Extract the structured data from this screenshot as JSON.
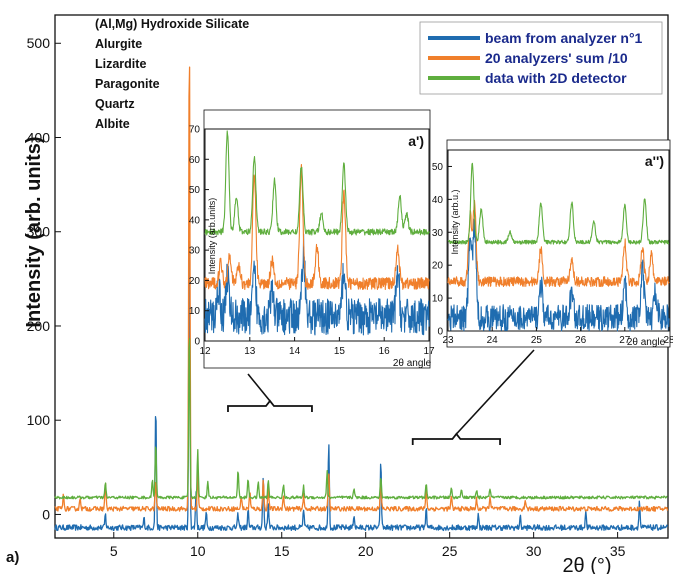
{
  "chart_data": [
    {
      "id": "main",
      "type": "line",
      "panel_label": "a)",
      "xlabel": "2θ (°)",
      "ylabel": "Intensity (arb. units)",
      "xlim": [
        1.5,
        38
      ],
      "ylim": [
        -25,
        530
      ],
      "xticks": [
        5,
        10,
        15,
        20,
        25,
        30,
        35
      ],
      "yticks": [
        0,
        100,
        200,
        300,
        400,
        500
      ],
      "minerals": [
        "(Al,Mg) Hydroxide Silicate",
        "Alurgite",
        "Lizardite",
        "Paragonite",
        "Quartz",
        "Albite"
      ],
      "legend": {
        "position": "top-right"
      },
      "series": [
        {
          "name": "beam from analyzer n°1",
          "color": "#1f6cb0",
          "baseline": -14,
          "noise": 3,
          "peaks": [
            [
              4.5,
              14
            ],
            [
              6.8,
              10
            ],
            [
              7.5,
              130
            ],
            [
              9.5,
              330
            ],
            [
              9.9,
              40
            ],
            [
              10.5,
              16
            ],
            [
              12.4,
              14
            ],
            [
              13.0,
              18
            ],
            [
              13.9,
              55
            ],
            [
              14.2,
              25
            ],
            [
              16.3,
              20
            ],
            [
              17.8,
              92
            ],
            [
              19.3,
              14
            ],
            [
              20.9,
              72
            ],
            [
              23.6,
              20
            ],
            [
              26.7,
              14
            ],
            [
              29.2,
              12
            ],
            [
              33.1,
              16
            ],
            [
              36.3,
              28
            ]
          ]
        },
        {
          "name": "20 analyzers' sum /10",
          "color": "#f07f2b",
          "baseline": 6,
          "noise": 2.5,
          "peaks": [
            [
              2.0,
              14
            ],
            [
              3.0,
              12
            ],
            [
              4.5,
              28
            ],
            [
              7.5,
              30
            ],
            [
              9.5,
              512
            ],
            [
              10.0,
              38
            ],
            [
              12.6,
              14
            ],
            [
              13.1,
              18
            ],
            [
              13.9,
              30
            ],
            [
              14.2,
              22
            ],
            [
              15.1,
              16
            ],
            [
              16.3,
              14
            ],
            [
              17.8,
              40
            ],
            [
              20.9,
              30
            ],
            [
              23.6,
              22
            ],
            [
              25.1,
              12
            ],
            [
              26.6,
              10
            ],
            [
              27.4,
              14
            ],
            [
              29.5,
              10
            ]
          ]
        },
        {
          "name": "data with 2D detector",
          "color": "#5fae3e",
          "baseline": 18,
          "noise": 1.5,
          "peaks": [
            [
              4.5,
              16
            ],
            [
              7.3,
              20
            ],
            [
              7.5,
              60
            ],
            [
              9.5,
              185
            ],
            [
              10.0,
              50
            ],
            [
              10.6,
              18
            ],
            [
              12.4,
              30
            ],
            [
              13.0,
              20
            ],
            [
              13.6,
              16
            ],
            [
              14.2,
              18
            ],
            [
              15.1,
              14
            ],
            [
              16.3,
              12
            ],
            [
              17.7,
              28
            ],
            [
              19.3,
              10
            ],
            [
              20.9,
              22
            ],
            [
              23.6,
              14
            ],
            [
              25.1,
              10
            ],
            [
              25.7,
              10
            ],
            [
              26.6,
              8
            ],
            [
              27.4,
              10
            ]
          ]
        }
      ]
    },
    {
      "id": "inset1",
      "type": "line",
      "panel_label": "a')",
      "xlabel": "2θ angle",
      "ylabel": "Intensity (arb.units)",
      "xlim": [
        12,
        17
      ],
      "ylim": [
        0,
        70
      ],
      "xticks": [
        12,
        13,
        14,
        15,
        16,
        17
      ],
      "yticks": [
        0,
        10,
        20,
        30,
        40,
        50,
        60,
        70
      ],
      "bracket_range": [
        11.8,
        16.8
      ],
      "series": [
        {
          "name": "beam from analyzer n°1",
          "color": "#1f6cb0",
          "baseline": 8,
          "noise": 6,
          "peaks": [
            [
              12.3,
              10
            ],
            [
              12.5,
              14
            ],
            [
              13.1,
              14
            ],
            [
              13.5,
              8
            ],
            [
              14.2,
              22
            ],
            [
              15.1,
              16
            ],
            [
              16.3,
              14
            ]
          ]
        },
        {
          "name": "20 analyzers' sum /10",
          "color": "#f07f2b",
          "baseline": 19,
          "noise": 2,
          "peaks": [
            [
              12.35,
              7
            ],
            [
              12.55,
              10
            ],
            [
              12.75,
              6
            ],
            [
              13.1,
              36
            ],
            [
              13.5,
              8
            ],
            [
              14.15,
              38
            ],
            [
              14.5,
              12
            ],
            [
              15.1,
              30
            ],
            [
              16.3,
              12
            ]
          ]
        },
        {
          "name": "data with 2D detector",
          "color": "#5fae3e",
          "baseline": 36,
          "noise": 1,
          "peaks": [
            [
              12.5,
              33
            ],
            [
              12.7,
              12
            ],
            [
              13.1,
              25
            ],
            [
              13.55,
              17
            ],
            [
              14.15,
              22
            ],
            [
              14.6,
              6
            ],
            [
              15.1,
              23
            ],
            [
              16.35,
              12
            ],
            [
              16.5,
              6
            ]
          ]
        }
      ]
    },
    {
      "id": "inset2",
      "type": "line",
      "panel_label": "a'')",
      "xlabel": "2θ angle",
      "ylabel": "Intensity (arb.u.)",
      "xlim": [
        23,
        28
      ],
      "ylim": [
        0,
        55
      ],
      "xticks": [
        23,
        24,
        25,
        26,
        27,
        28
      ],
      "yticks": [
        0,
        10,
        20,
        30,
        40,
        50
      ],
      "bracket_range": [
        22.8,
        28.0
      ],
      "series": [
        {
          "name": "beam from analyzer n°1",
          "color": "#1f6cb0",
          "baseline": 4,
          "noise": 4,
          "peaks": [
            [
              23.5,
              24
            ],
            [
              23.6,
              28
            ],
            [
              25.1,
              10
            ],
            [
              25.8,
              8
            ],
            [
              27.0,
              10
            ],
            [
              27.4,
              14
            ],
            [
              27.7,
              8
            ]
          ]
        },
        {
          "name": "20 analyzers' sum /10",
          "color": "#f07f2b",
          "baseline": 15,
          "noise": 1.5,
          "peaks": [
            [
              23.5,
              20
            ],
            [
              23.6,
              24
            ],
            [
              25.1,
              10
            ],
            [
              25.8,
              6
            ],
            [
              27.0,
              12
            ],
            [
              27.4,
              10
            ],
            [
              27.6,
              8
            ]
          ]
        },
        {
          "name": "data with 2D detector",
          "color": "#5fae3e",
          "baseline": 27,
          "noise": 0.6,
          "peaks": [
            [
              23.55,
              24
            ],
            [
              23.75,
              10
            ],
            [
              24.4,
              3
            ],
            [
              25.1,
              12
            ],
            [
              25.8,
              12
            ],
            [
              26.3,
              6
            ],
            [
              27.0,
              11
            ],
            [
              27.45,
              13
            ]
          ]
        }
      ]
    }
  ]
}
